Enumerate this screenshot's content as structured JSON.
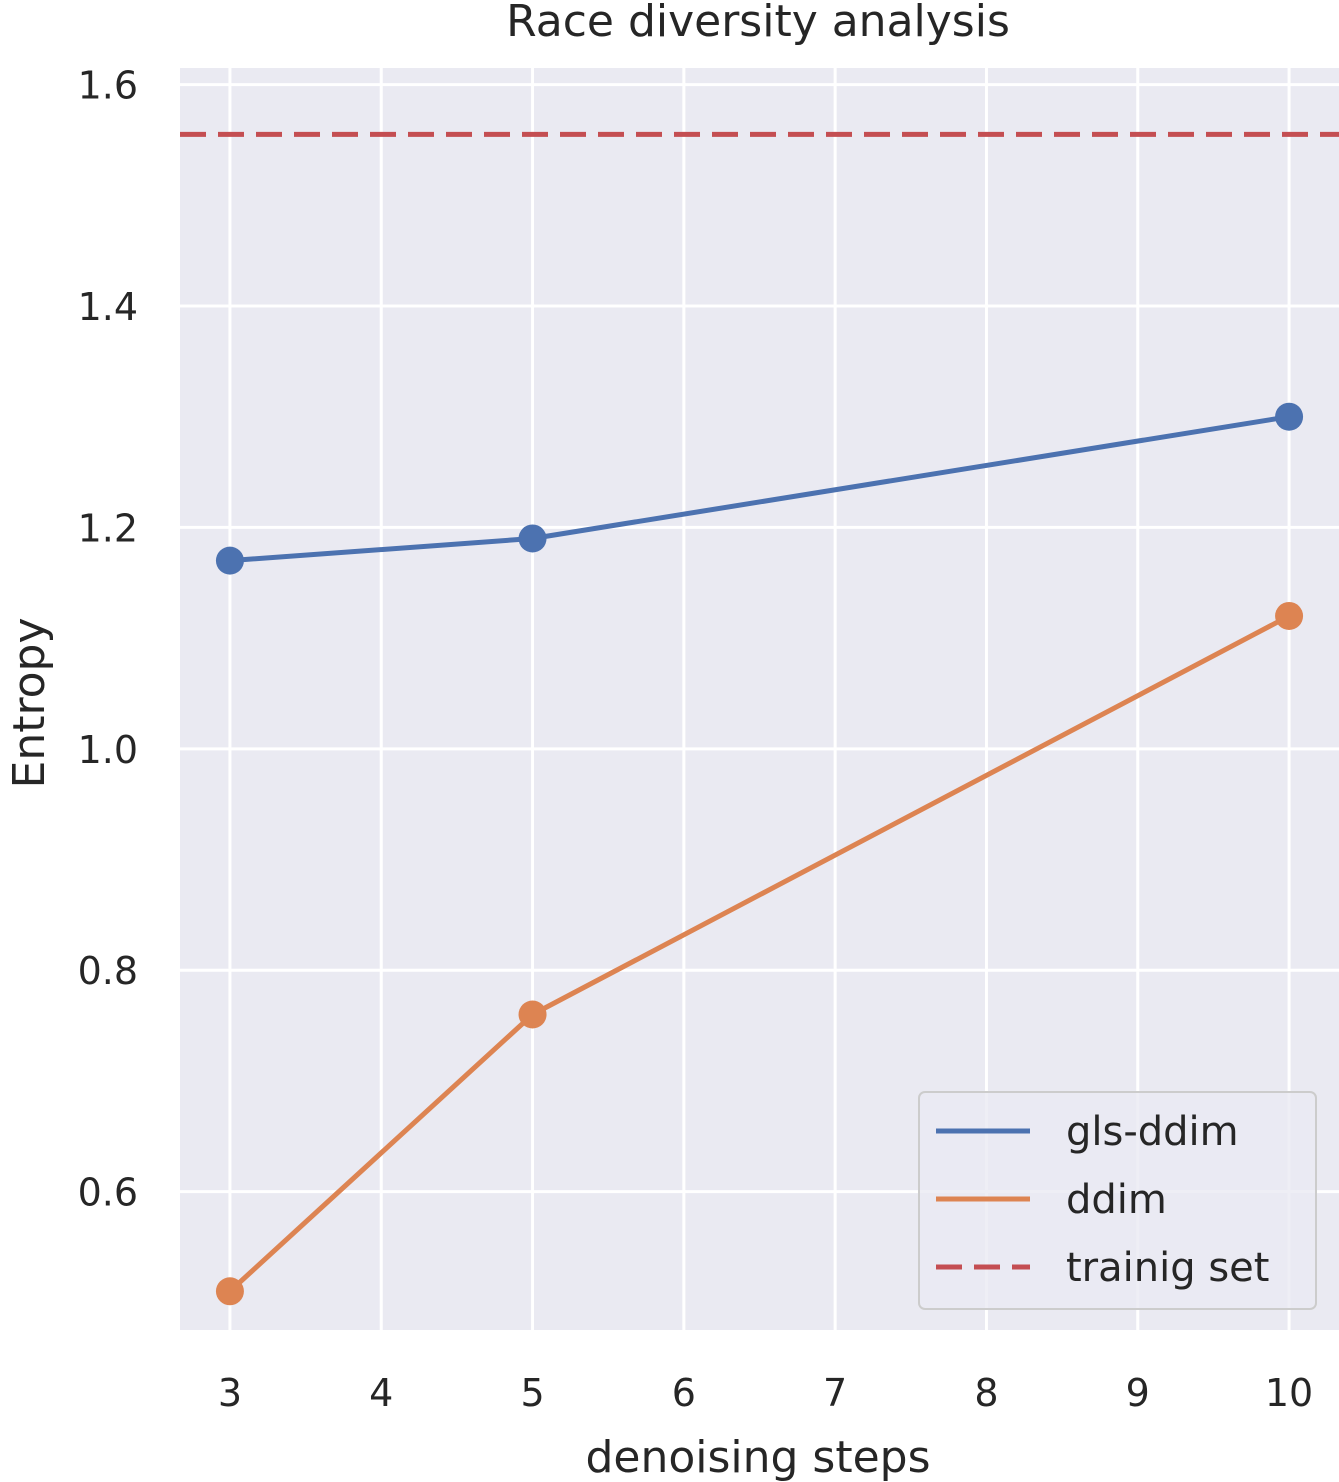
{
  "chart_data": {
    "type": "line",
    "title": "Race diversity analysis",
    "xlabel": "denoising steps",
    "ylabel": "Entropy",
    "xlim": [
      2.67,
      10.33
    ],
    "ylim": [
      0.475,
      1.615
    ],
    "x_ticks": [
      3,
      4,
      5,
      6,
      7,
      8,
      9,
      10
    ],
    "y_ticks": [
      0.6,
      0.8,
      1.0,
      1.2,
      1.4,
      1.6
    ],
    "y_tick_labels": [
      "0.6",
      "0.8",
      "1.0",
      "1.2",
      "1.4",
      "1.6"
    ],
    "grid": true,
    "legend_position": "lower-right",
    "series": [
      {
        "name": "gls-ddim",
        "color": "#4c72b0",
        "style": "solid",
        "markers": true,
        "x": [
          3,
          5,
          10
        ],
        "y": [
          1.17,
          1.19,
          1.3
        ]
      },
      {
        "name": "ddim",
        "color": "#dd8452",
        "style": "solid",
        "markers": true,
        "x": [
          3,
          5,
          10
        ],
        "y": [
          0.51,
          0.76,
          1.12
        ]
      }
    ],
    "reference_lines": [
      {
        "name": "trainig set",
        "color": "#c44e52",
        "style": "dashed",
        "y": 1.555
      }
    ]
  }
}
